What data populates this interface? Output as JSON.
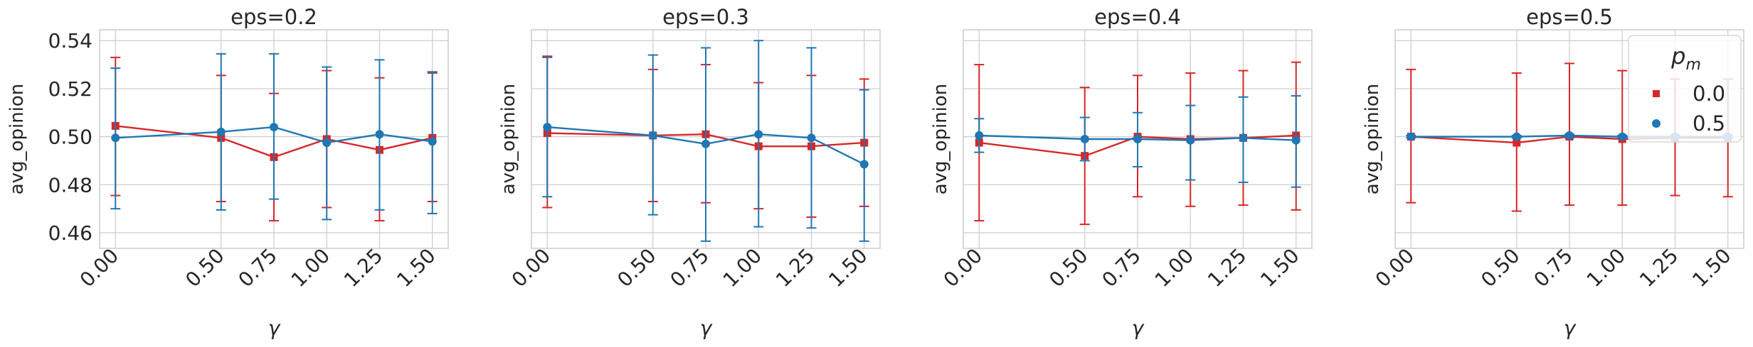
{
  "figure": {
    "ylabel": "avg_opinion",
    "xlabel": "γ",
    "legend": {
      "title_base": "p",
      "title_sub": "m",
      "entries": [
        {
          "label": "0.0",
          "color": "#d62728",
          "marker": "square"
        },
        {
          "label": "0.5",
          "color": "#1f77b4",
          "marker": "circle"
        }
      ]
    }
  },
  "chart_data": [
    {
      "type": "line",
      "title": "eps=0.2",
      "x": [
        0.0,
        0.5,
        0.75,
        1.0,
        1.25,
        1.5
      ],
      "xtick_labels": [
        "0.00",
        "0.50",
        "0.75",
        "1.00",
        "1.25",
        "1.50"
      ],
      "ylim": [
        0.4535,
        0.5445
      ],
      "yticks": [
        0.46,
        0.48,
        0.5,
        0.52,
        0.54
      ],
      "ytick_labels": [
        "0.46",
        "0.48",
        "0.50",
        "0.52",
        "0.54"
      ],
      "show_ytick_labels": true,
      "grid": true,
      "series": [
        {
          "name": "0.0",
          "color": "#d62728",
          "marker": "square",
          "values": [
            0.5045,
            0.4995,
            0.4915,
            0.499,
            0.4945,
            0.4995
          ],
          "err_low": [
            0.4755,
            0.473,
            0.465,
            0.4705,
            0.465,
            0.473
          ],
          "err_high": [
            0.533,
            0.5255,
            0.518,
            0.5275,
            0.5245,
            0.5265
          ]
        },
        {
          "name": "0.5",
          "color": "#1f77b4",
          "marker": "circle",
          "values": [
            0.4995,
            0.502,
            0.504,
            0.4975,
            0.501,
            0.498
          ],
          "err_low": [
            0.47,
            0.4695,
            0.474,
            0.4655,
            0.4695,
            0.468
          ],
          "err_high": [
            0.5285,
            0.5345,
            0.5345,
            0.529,
            0.532,
            0.527
          ]
        }
      ]
    },
    {
      "type": "line",
      "title": "eps=0.3",
      "x": [
        0.0,
        0.5,
        0.75,
        1.0,
        1.25,
        1.5
      ],
      "xtick_labels": [
        "0.00",
        "0.50",
        "0.75",
        "1.00",
        "1.25",
        "1.50"
      ],
      "ylim": [
        0.4535,
        0.5445
      ],
      "yticks": [
        0.46,
        0.48,
        0.5,
        0.52,
        0.54
      ],
      "show_ytick_labels": false,
      "grid": true,
      "series": [
        {
          "name": "0.0",
          "color": "#d62728",
          "marker": "square",
          "values": [
            0.5015,
            0.5005,
            0.501,
            0.496,
            0.496,
            0.4975
          ],
          "err_low": [
            0.4705,
            0.473,
            0.4725,
            0.47,
            0.4665,
            0.471
          ],
          "err_high": [
            0.5335,
            0.528,
            0.53,
            0.5225,
            0.5255,
            0.524
          ]
        },
        {
          "name": "0.5",
          "color": "#1f77b4",
          "marker": "circle",
          "values": [
            0.504,
            0.5005,
            0.497,
            0.501,
            0.4995,
            0.4885
          ],
          "err_low": [
            0.475,
            0.4675,
            0.4565,
            0.4625,
            0.462,
            0.4565
          ],
          "err_high": [
            0.533,
            0.534,
            0.537,
            0.54,
            0.537,
            0.5195
          ]
        }
      ]
    },
    {
      "type": "line",
      "title": "eps=0.4",
      "x": [
        0.0,
        0.5,
        0.75,
        1.0,
        1.25,
        1.5
      ],
      "xtick_labels": [
        "0.00",
        "0.50",
        "0.75",
        "1.00",
        "1.25",
        "1.50"
      ],
      "ylim": [
        0.4535,
        0.5445
      ],
      "yticks": [
        0.46,
        0.48,
        0.5,
        0.52,
        0.54
      ],
      "show_ytick_labels": false,
      "grid": true,
      "series": [
        {
          "name": "0.0",
          "color": "#d62728",
          "marker": "square",
          "values": [
            0.4975,
            0.492,
            0.5,
            0.499,
            0.4995,
            0.5005
          ],
          "err_low": [
            0.465,
            0.4635,
            0.475,
            0.471,
            0.4715,
            0.4695
          ],
          "err_high": [
            0.53,
            0.5205,
            0.5255,
            0.5265,
            0.5275,
            0.531
          ]
        },
        {
          "name": "0.5",
          "color": "#1f77b4",
          "marker": "circle",
          "values": [
            0.5005,
            0.499,
            0.499,
            0.4985,
            0.4995,
            0.4985
          ],
          "err_low": [
            0.4935,
            0.49,
            0.4875,
            0.482,
            0.481,
            0.479
          ],
          "err_high": [
            0.5075,
            0.508,
            0.51,
            0.513,
            0.5165,
            0.517
          ]
        }
      ]
    },
    {
      "type": "line",
      "title": "eps=0.5",
      "x": [
        0.0,
        0.5,
        0.75,
        1.0,
        1.25,
        1.5
      ],
      "xtick_labels": [
        "0.00",
        "0.50",
        "0.75",
        "1.00",
        "1.25",
        "1.50"
      ],
      "ylim": [
        0.4535,
        0.5445
      ],
      "yticks": [
        0.46,
        0.48,
        0.5,
        0.52,
        0.54
      ],
      "show_ytick_labels": false,
      "grid": true,
      "legend_position": "top-right",
      "series": [
        {
          "name": "0.0",
          "color": "#d62728",
          "marker": "square",
          "values": [
            0.5,
            0.4975,
            0.5,
            0.499,
            0.4995,
            0.4995
          ],
          "err_low": [
            0.4725,
            0.469,
            0.4715,
            0.4715,
            0.4755,
            0.475
          ],
          "err_high": [
            0.528,
            0.5265,
            0.5305,
            0.5275,
            0.524,
            0.524
          ]
        },
        {
          "name": "0.5",
          "color": "#1f77b4",
          "marker": "circle",
          "values": [
            0.5,
            0.5,
            0.5005,
            0.5,
            0.5,
            0.5
          ],
          "err_low": [
            0.4995,
            0.4995,
            0.4995,
            0.4995,
            0.4995,
            0.4995
          ],
          "err_high": [
            0.5005,
            0.5005,
            0.501,
            0.5005,
            0.5005,
            0.5005
          ]
        }
      ]
    }
  ]
}
